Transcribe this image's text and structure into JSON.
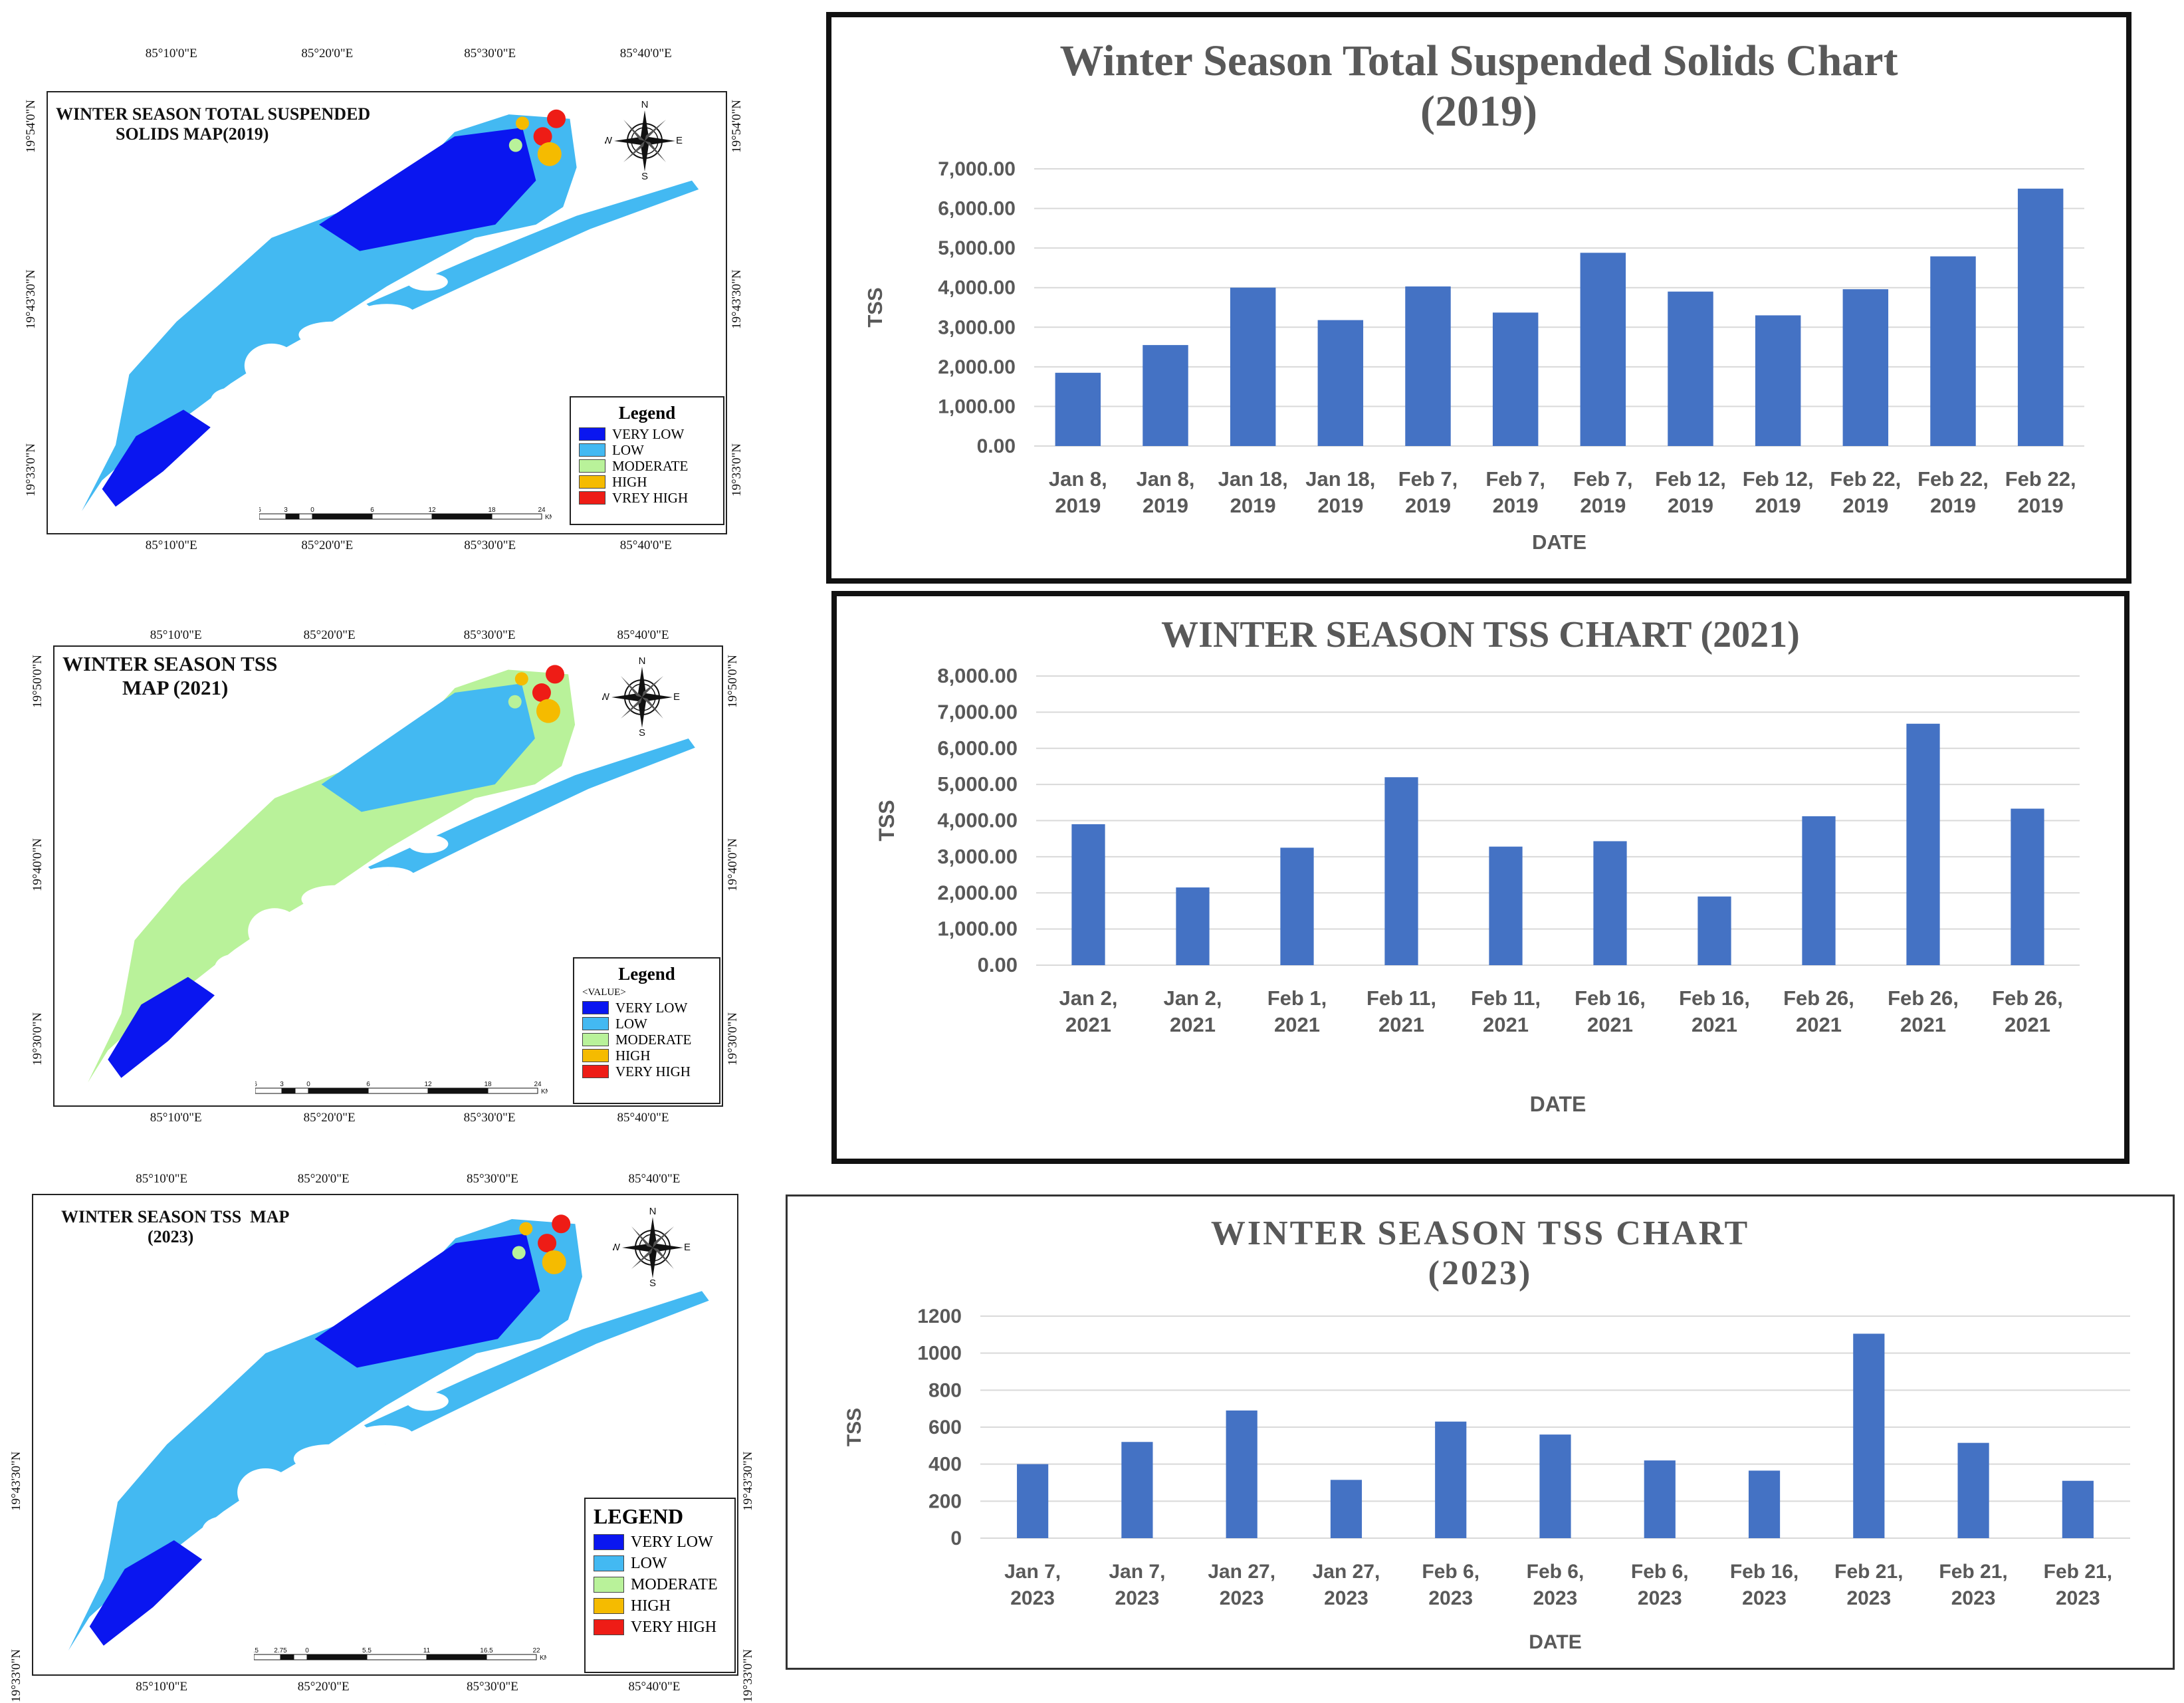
{
  "colors": {
    "very_low": "#0a16f0",
    "low": "#43b9f2",
    "moderate": "#b9f29a",
    "high": "#f5bb00",
    "very_high": "#ee1c16",
    "bar": "#4472c4",
    "grid": "#d9d9d9",
    "axis_text": "#595959"
  },
  "maps": [
    {
      "title_line1": "WINTER SEASON TOTAL SUSPENDED",
      "title_line2": "SOLIDS MAP(2019)",
      "top_ticks": [
        "85°10'0\"E",
        "85°20'0\"E",
        "85°30'0\"E",
        "85°40'0\"E"
      ],
      "bottom_ticks": [
        "85°10'0\"E",
        "85°20'0\"E",
        "85°30'0\"E",
        "85°40'0\"E"
      ],
      "left_ticks": [
        "19°54'0\"N",
        "19°43'30\"N",
        "19°33'0\"N"
      ],
      "right_ticks": [
        "19°54'0\"N",
        "19°43'30\"N",
        "19°33'0\"N"
      ],
      "compass": {
        "n": "N",
        "s": "S",
        "e": "E",
        "w": "W"
      },
      "legend": {
        "title": "Legend",
        "subtitle": "",
        "items": [
          "VERY LOW",
          "LOW",
          "MODERATE",
          "HIGH",
          "VREY HIGH"
        ]
      },
      "scale_labels": [
        "6",
        "3",
        "0",
        "6",
        "12",
        "18",
        "24"
      ],
      "scale_unit": "KM."
    },
    {
      "title_line1": "WINTER SEASON TSS",
      "title_line2": "MAP (2021)",
      "top_ticks": [
        "85°10'0\"E",
        "85°20'0\"E",
        "85°30'0\"E",
        "85°40'0\"E"
      ],
      "bottom_ticks": [
        "85°10'0\"E",
        "85°20'0\"E",
        "85°30'0\"E",
        "85°40'0\"E"
      ],
      "left_ticks": [
        "19°50'0\"N",
        "19°40'0\"N",
        "19°30'0\"N"
      ],
      "right_ticks": [
        "19°50'0\"N",
        "19°40'0\"N",
        "19°30'0\"N"
      ],
      "compass": {
        "n": "N",
        "s": "S",
        "e": "E",
        "w": "W"
      },
      "legend": {
        "title": "Legend",
        "subtitle": "<VALUE>",
        "items": [
          "VERY LOW",
          "LOW",
          "MODERATE",
          "HIGH",
          "VERY HIGH"
        ]
      },
      "scale_labels": [
        "6",
        "3",
        "0",
        "6",
        "12",
        "18",
        "24"
      ],
      "scale_unit": "KM."
    },
    {
      "title_line1": "WINTER SEASON TSS  MAP",
      "title_line2": "(2023)",
      "top_ticks": [
        "85°10'0\"E",
        "85°20'0\"E",
        "85°30'0\"E",
        "85°40'0\"E"
      ],
      "bottom_ticks": [
        "85°10'0\"E",
        "85°20'0\"E",
        "85°30'0\"E",
        "85°40'0\"E"
      ],
      "left_ticks": [
        "19°43'30\"N",
        "19°33'0\"N"
      ],
      "right_ticks": [
        "19°43'30\"N",
        "19°33'0\"N"
      ],
      "compass": {
        "n": "N",
        "s": "S",
        "e": "E",
        "w": "W"
      },
      "legend": {
        "title": "LEGEND",
        "subtitle": "",
        "items": [
          "VERY LOW",
          "LOW",
          "MODERATE",
          "HIGH",
          "VERY HIGH"
        ]
      },
      "scale_labels": [
        "5.5",
        "2.75",
        "0",
        "5.5",
        "11",
        "16.5",
        "22"
      ],
      "scale_unit": "KM."
    }
  ],
  "chart_data": [
    {
      "type": "bar",
      "title": "Winter Season Total Suspended Solids Chart (2019)",
      "title_line1": "Winter Season Total Suspended Solids Chart",
      "title_line2": "(2019)",
      "xlabel": "DATE",
      "ylabel": "TSS",
      "ylim": [
        0,
        7000
      ],
      "yticks": [
        "0.00",
        "1,000.00",
        "2,000.00",
        "3,000.00",
        "4,000.00",
        "5,000.00",
        "6,000.00",
        "7,000.00"
      ],
      "categories": [
        [
          "Jan 8,",
          "2019"
        ],
        [
          "Jan 8,",
          "2019"
        ],
        [
          "Jan 18,",
          "2019"
        ],
        [
          "Jan 18,",
          "2019"
        ],
        [
          "Feb 7,",
          "2019"
        ],
        [
          "Feb 7,",
          "2019"
        ],
        [
          "Feb 7,",
          "2019"
        ],
        [
          "Feb 12,",
          "2019"
        ],
        [
          "Feb 12,",
          "2019"
        ],
        [
          "Feb 22,",
          "2019"
        ],
        [
          "Feb 22,",
          "2019"
        ],
        [
          "Feb 22,",
          "2019"
        ]
      ],
      "values": [
        1850,
        2550,
        4000,
        3180,
        4030,
        3370,
        4880,
        3900,
        3300,
        3960,
        4790,
        6500
      ],
      "grid": true
    },
    {
      "type": "bar",
      "title": "WINTER SEASON TSS CHART (2021)",
      "title_line1": "WINTER SEASON TSS CHART (2021)",
      "title_line2": "",
      "xlabel": "DATE",
      "ylabel": "TSS",
      "ylim": [
        0,
        8000
      ],
      "yticks": [
        "0.00",
        "1,000.00",
        "2,000.00",
        "3,000.00",
        "4,000.00",
        "5,000.00",
        "6,000.00",
        "7,000.00",
        "8,000.00"
      ],
      "categories": [
        [
          "Jan 2,",
          "2021"
        ],
        [
          "Jan 2,",
          "2021"
        ],
        [
          "Feb 1,",
          "2021"
        ],
        [
          "Feb 11,",
          "2021"
        ],
        [
          "Feb 11,",
          "2021"
        ],
        [
          "Feb 16,",
          "2021"
        ],
        [
          "Feb 16,",
          "2021"
        ],
        [
          "Feb 26,",
          "2021"
        ],
        [
          "Feb 26,",
          "2021"
        ],
        [
          "Feb 26,",
          "2021"
        ]
      ],
      "values": [
        3900,
        2150,
        3250,
        5200,
        3280,
        3430,
        1900,
        4120,
        6680,
        4330
      ],
      "grid": true
    },
    {
      "type": "bar",
      "title": "WINTER SEASON TSS CHART (2023)",
      "title_line1": "WINTER SEASON TSS CHART",
      "title_line2": "(2023)",
      "xlabel": "DATE",
      "ylabel": "TSS",
      "ylim": [
        0,
        1200
      ],
      "yticks": [
        "0",
        "200",
        "400",
        "600",
        "800",
        "1000",
        "1200"
      ],
      "categories": [
        [
          "Jan 7,",
          "2023"
        ],
        [
          "Jan 7,",
          "2023"
        ],
        [
          "Jan 27,",
          "2023"
        ],
        [
          "Jan 27,",
          "2023"
        ],
        [
          "Feb 6,",
          "2023"
        ],
        [
          "Feb 6,",
          "2023"
        ],
        [
          "Feb 6,",
          "2023"
        ],
        [
          "Feb 16,",
          "2023"
        ],
        [
          "Feb 21,",
          "2023"
        ],
        [
          "Feb 21,",
          "2023"
        ],
        [
          "Feb 21,",
          "2023"
        ]
      ],
      "values": [
        400,
        520,
        690,
        315,
        630,
        560,
        420,
        365,
        1105,
        515,
        310
      ],
      "grid": true
    }
  ]
}
